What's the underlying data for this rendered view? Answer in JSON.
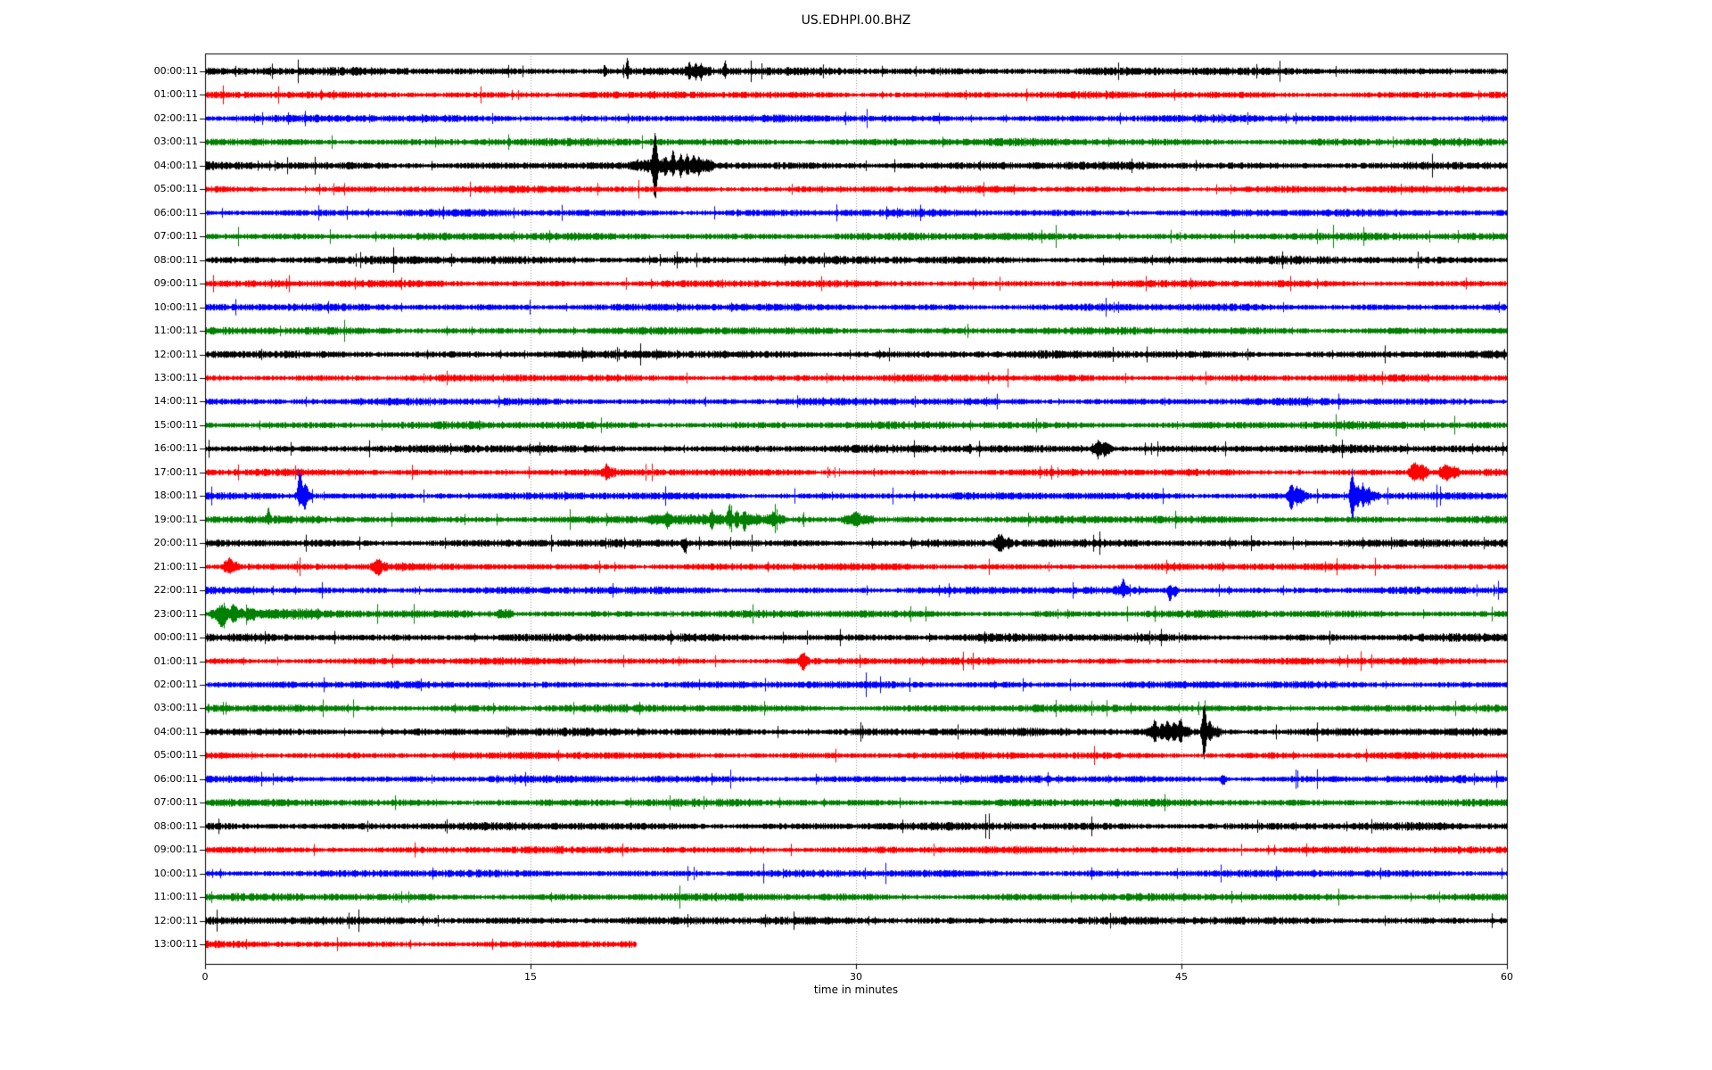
{
  "chart_data": {
    "type": "line",
    "subtype": "seismogram-dayplot",
    "title": "US.EDHPI.00.BHZ",
    "xlabel": "time in minutes",
    "x_range": [
      0,
      60
    ],
    "x_ticks": [
      "0",
      "15",
      "30",
      "45",
      "60"
    ],
    "grid_minutes": [
      15,
      30,
      45
    ],
    "grid_color": "#999999",
    "axis_color": "#000000",
    "colors": {
      "k": "#000000",
      "r": "#ff0000",
      "b": "#0000ff",
      "g": "#008000"
    },
    "noise_amp": {
      "k": 2.7,
      "r": 2.4,
      "b": 2.5,
      "g": 2.6
    },
    "rows": [
      {
        "label": "00:00:11",
        "color": "k",
        "end": 60,
        "spikes": [
          [
            18.4,
            5,
            4,
            0.05
          ],
          [
            19.45,
            13,
            6,
            0.05
          ],
          [
            22.3,
            5,
            5,
            0.05
          ],
          [
            22.6,
            7,
            7,
            0.05
          ],
          [
            22.85,
            5,
            6,
            0.05
          ],
          [
            23.95,
            8,
            5,
            0.06
          ]
        ],
        "bursts": [
          [
            22.1,
            23.2,
            2
          ]
        ]
      },
      {
        "label": "01:00:11",
        "color": "r",
        "end": 60,
        "spikes": [],
        "bursts": []
      },
      {
        "label": "02:00:11",
        "color": "b",
        "end": 60,
        "spikes": [],
        "bursts": []
      },
      {
        "label": "03:00:11",
        "color": "g",
        "end": 60,
        "spikes": [],
        "bursts": []
      },
      {
        "label": "04:00:11",
        "color": "k",
        "end": 60,
        "spikes": [
          [
            20.72,
            30,
            33,
            0.07
          ],
          [
            21.2,
            6,
            6,
            0.05
          ],
          [
            21.55,
            11,
            7,
            0.05
          ],
          [
            21.9,
            6,
            7,
            0.05
          ],
          [
            22.2,
            9,
            7,
            0.05
          ],
          [
            22.5,
            7,
            6,
            0.05
          ],
          [
            22.75,
            5,
            5,
            0.05
          ]
        ],
        "bursts": [
          [
            19.9,
            20.65,
            3
          ],
          [
            20.75,
            23.3,
            3.5
          ]
        ]
      },
      {
        "label": "05:00:11",
        "color": "r",
        "end": 60,
        "spikes": [],
        "bursts": []
      },
      {
        "label": "06:00:11",
        "color": "b",
        "end": 60,
        "spikes": [],
        "bursts": []
      },
      {
        "label": "07:00:11",
        "color": "g",
        "end": 60,
        "spikes": [],
        "bursts": []
      },
      {
        "label": "08:00:11",
        "color": "k",
        "end": 60,
        "spikes": [],
        "bursts": []
      },
      {
        "label": "09:00:11",
        "color": "r",
        "end": 60,
        "spikes": [],
        "bursts": []
      },
      {
        "label": "10:00:11",
        "color": "b",
        "end": 60,
        "spikes": [],
        "bursts": []
      },
      {
        "label": "11:00:11",
        "color": "g",
        "end": 60,
        "spikes": [],
        "bursts": []
      },
      {
        "label": "12:00:11",
        "color": "k",
        "end": 60,
        "spikes": [],
        "bursts": []
      },
      {
        "label": "13:00:11",
        "color": "r",
        "end": 60,
        "spikes": [],
        "bursts": []
      },
      {
        "label": "14:00:11",
        "color": "b",
        "end": 60,
        "spikes": [],
        "bursts": []
      },
      {
        "label": "15:00:11",
        "color": "g",
        "end": 60,
        "spikes": [],
        "bursts": []
      },
      {
        "label": "16:00:11",
        "color": "k",
        "end": 60,
        "spikes": [
          [
            41.15,
            5,
            5,
            0.08
          ],
          [
            41.45,
            4,
            4,
            0.08
          ]
        ],
        "bursts": [
          [
            40.9,
            41.7,
            3.5
          ]
        ]
      },
      {
        "label": "17:00:11",
        "color": "r",
        "end": 60,
        "spikes": [
          [
            18.5,
            5,
            4,
            0.06
          ],
          [
            55.75,
            6,
            5,
            0.1
          ],
          [
            56.05,
            5,
            4,
            0.1
          ],
          [
            57.2,
            4,
            4,
            0.12
          ]
        ],
        "bursts": [
          [
            18.3,
            18.8,
            3
          ],
          [
            55.5,
            56.3,
            4
          ],
          [
            56.9,
            57.7,
            3.5
          ]
        ]
      },
      {
        "label": "18:00:11",
        "color": "b",
        "end": 60,
        "spikes": [
          [
            4.35,
            27,
            7,
            0.07
          ],
          [
            4.55,
            6,
            11,
            0.06
          ],
          [
            4.65,
            9,
            5,
            0.06
          ],
          [
            50.05,
            10,
            12,
            0.06
          ],
          [
            50.3,
            7,
            6,
            0.06
          ],
          [
            50.5,
            5,
            5,
            0.06
          ],
          [
            52.85,
            25,
            23,
            0.07
          ],
          [
            53.1,
            8,
            8,
            0.06
          ],
          [
            53.35,
            9,
            7,
            0.06
          ],
          [
            53.6,
            6,
            6,
            0.06
          ]
        ],
        "bursts": [
          [
            4.2,
            4.8,
            2
          ],
          [
            49.9,
            50.7,
            3
          ],
          [
            52.9,
            54.0,
            3.5
          ]
        ]
      },
      {
        "label": "19:00:11",
        "color": "g",
        "end": 60,
        "spikes": [
          [
            2.9,
            10,
            3,
            0.06
          ],
          [
            21.3,
            4,
            6,
            0.06
          ],
          [
            23.35,
            6,
            6,
            0.06
          ],
          [
            24.15,
            12,
            4,
            0.06
          ],
          [
            24.5,
            5,
            5,
            0.06
          ],
          [
            24.85,
            5,
            8,
            0.06
          ],
          [
            26.2,
            5,
            4,
            0.08
          ],
          [
            30.0,
            5,
            4,
            0.1
          ]
        ],
        "bursts": [
          [
            20.5,
            26.6,
            2.2
          ],
          [
            29.4,
            30.7,
            2.8
          ]
        ]
      },
      {
        "label": "20:00:11",
        "color": "k",
        "end": 60,
        "spikes": [
          [
            22.1,
            3,
            10,
            0.07
          ],
          [
            36.6,
            5,
            5,
            0.08
          ]
        ],
        "bursts": [
          [
            36.4,
            37.1,
            3
          ]
        ]
      },
      {
        "label": "21:00:11",
        "color": "r",
        "end": 60,
        "spikes": [
          [
            1.1,
            5,
            4,
            0.1
          ],
          [
            7.95,
            4,
            4,
            0.1
          ]
        ],
        "bursts": [
          [
            0.85,
            1.45,
            3.2
          ],
          [
            7.75,
            8.25,
            3
          ]
        ]
      },
      {
        "label": "22:00:11",
        "color": "b",
        "end": 60,
        "spikes": [
          [
            42.3,
            9,
            3,
            0.07
          ],
          [
            44.45,
            4,
            11,
            0.07
          ],
          [
            44.7,
            3,
            6,
            0.07
          ]
        ],
        "bursts": [
          [
            41.9,
            42.5,
            1.5
          ]
        ]
      },
      {
        "label": "23:00:11",
        "color": "g",
        "end": 60,
        "spikes": [
          [
            0.75,
            4,
            10,
            0.12
          ],
          [
            1.3,
            6,
            5,
            0.1
          ]
        ],
        "bursts": [
          [
            0.25,
            2.2,
            4
          ],
          [
            2.2,
            5.2,
            2.2
          ],
          [
            13.5,
            14.1,
            2.5
          ]
        ]
      },
      {
        "label": "00:00:11",
        "color": "k",
        "end": 60,
        "spikes": [],
        "bursts": []
      },
      {
        "label": "01:00:11",
        "color": "r",
        "end": 60,
        "spikes": [
          [
            27.55,
            5,
            5,
            0.08
          ]
        ],
        "bursts": [
          [
            27.35,
            27.75,
            3.5
          ]
        ]
      },
      {
        "label": "02:00:11",
        "color": "b",
        "end": 60,
        "spikes": [],
        "bursts": []
      },
      {
        "label": "03:00:11",
        "color": "g",
        "end": 60,
        "spikes": [],
        "bursts": []
      },
      {
        "label": "04:00:11",
        "color": "k",
        "end": 60,
        "spikes": [
          [
            43.75,
            8,
            6,
            0.07
          ],
          [
            44.1,
            5,
            5,
            0.06
          ],
          [
            44.35,
            9,
            7,
            0.06
          ],
          [
            44.65,
            6,
            5,
            0.06
          ],
          [
            44.95,
            8,
            6,
            0.06
          ],
          [
            46.02,
            26,
            25,
            0.07
          ],
          [
            46.3,
            7,
            6,
            0.06
          ]
        ],
        "bursts": [
          [
            43.4,
            45.3,
            3.2
          ],
          [
            46.05,
            46.7,
            4
          ]
        ]
      },
      {
        "label": "05:00:11",
        "color": "r",
        "end": 60,
        "spikes": [],
        "bursts": []
      },
      {
        "label": "06:00:11",
        "color": "b",
        "end": 60,
        "spikes": [
          [
            46.9,
            3,
            6,
            0.08
          ]
        ],
        "bursts": []
      },
      {
        "label": "07:00:11",
        "color": "g",
        "end": 60,
        "spikes": [],
        "bursts": []
      },
      {
        "label": "08:00:11",
        "color": "k",
        "end": 60,
        "spikes": [],
        "bursts": []
      },
      {
        "label": "09:00:11",
        "color": "r",
        "end": 60,
        "spikes": [],
        "bursts": []
      },
      {
        "label": "10:00:11",
        "color": "b",
        "end": 60,
        "spikes": [],
        "bursts": []
      },
      {
        "label": "11:00:11",
        "color": "g",
        "end": 60,
        "spikes": [],
        "bursts": []
      },
      {
        "label": "12:00:11",
        "color": "k",
        "end": 60,
        "spikes": [],
        "bursts": []
      },
      {
        "label": "13:00:11",
        "color": "r",
        "end": 19.9,
        "spikes": [],
        "bursts": []
      }
    ]
  }
}
